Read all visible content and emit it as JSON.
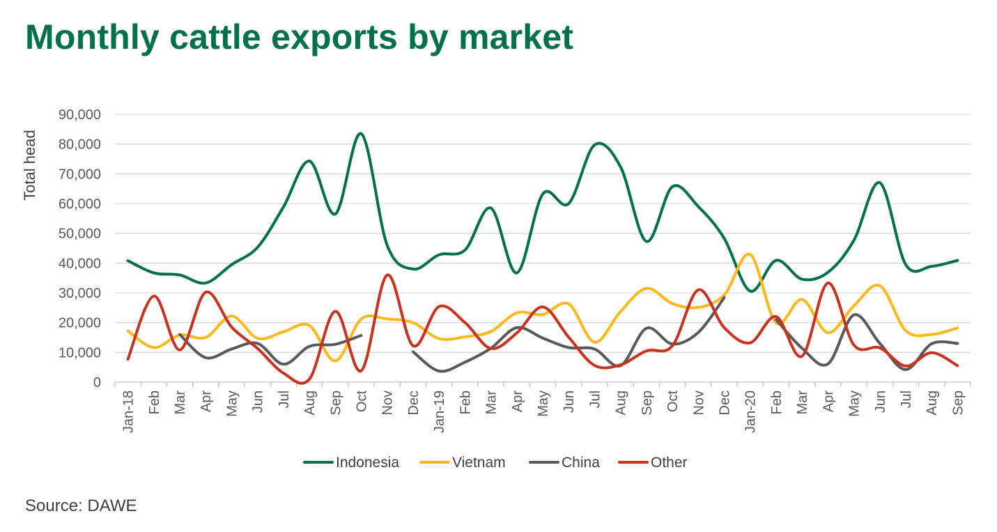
{
  "chart_data": {
    "type": "line",
    "title": "Monthly cattle exports by market",
    "source": "Source: DAWE",
    "ylabel": "Total head",
    "xlabel": "",
    "ylim": [
      0,
      90000
    ],
    "yticks": [
      0,
      10000,
      20000,
      30000,
      40000,
      50000,
      60000,
      70000,
      80000,
      90000
    ],
    "ytick_labels": [
      "0",
      "10,000",
      "20,000",
      "30,000",
      "40,000",
      "50,000",
      "60,000",
      "70,000",
      "80,000",
      "90,000"
    ],
    "grid": true,
    "legend_position": "bottom",
    "categories": [
      "Jan-18",
      "Feb",
      "Mar",
      "Apr",
      "May",
      "Jun",
      "Jul",
      "Aug",
      "Sep",
      "Oct",
      "Nov",
      "Dec",
      "Jan-19",
      "Feb",
      "Mar",
      "Apr",
      "May",
      "Jun",
      "Jul",
      "Aug",
      "Sep",
      "Oct",
      "Nov",
      "Dec",
      "Jan-20",
      "Feb",
      "Mar",
      "Apr",
      "May",
      "Jun",
      "Jul",
      "Aug",
      "Sep"
    ],
    "series": [
      {
        "name": "Indonesia",
        "color": "#00704A",
        "values": [
          40800,
          36700,
          36000,
          33300,
          39500,
          45300,
          58900,
          74300,
          56500,
          83500,
          46000,
          38000,
          42800,
          44400,
          58500,
          36700,
          63200,
          60000,
          79700,
          72400,
          47300,
          65700,
          59000,
          48300,
          30600,
          40900,
          34600,
          36900,
          47600,
          67000,
          39500,
          38900,
          40900
        ]
      },
      {
        "name": "Vietnam",
        "color": "#FFB81C",
        "values": [
          17200,
          11600,
          15800,
          15000,
          22200,
          14700,
          16900,
          19000,
          7100,
          21200,
          21200,
          20000,
          14600,
          15200,
          17000,
          23300,
          22700,
          26300,
          13400,
          23700,
          31500,
          26400,
          25100,
          29300,
          42900,
          19900,
          27800,
          16600,
          25600,
          32400,
          17300,
          16000,
          18200
        ]
      },
      {
        "name": "China",
        "color": "#595959",
        "values": [
          null,
          null,
          16000,
          8200,
          11100,
          13000,
          6000,
          12000,
          12700,
          15700,
          null,
          10200,
          3700,
          6700,
          11400,
          18300,
          14800,
          11600,
          11100,
          5500,
          18100,
          12800,
          16700,
          28400,
          null,
          21000,
          11400,
          6100,
          22600,
          13000,
          4200,
          12900,
          13000
        ]
      },
      {
        "name": "Other",
        "color": "#C8321E",
        "values": [
          7700,
          28900,
          10800,
          30200,
          18500,
          11300,
          3000,
          1000,
          23800,
          3800,
          36000,
          12200,
          25400,
          20000,
          11300,
          16500,
          25300,
          15100,
          5600,
          5800,
          10500,
          12200,
          31000,
          18300,
          13200,
          22000,
          8700,
          33300,
          12500,
          11500,
          5400,
          9900,
          5500
        ]
      }
    ]
  }
}
